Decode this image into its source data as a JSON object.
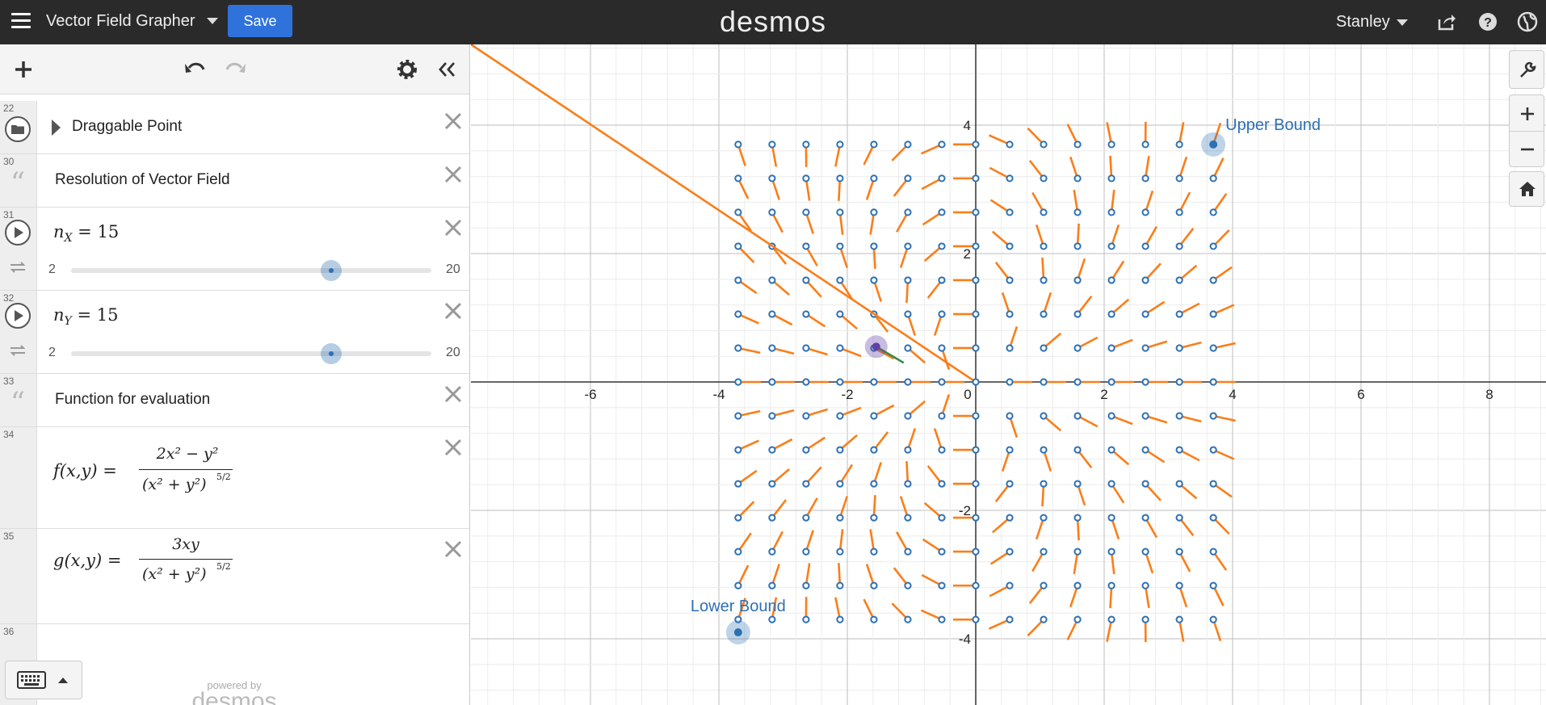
{
  "header": {
    "graph_title": "Vector Field Grapher",
    "save_label": "Save",
    "logo": "desmos",
    "user": "Stanley"
  },
  "expressions": [
    {
      "num": "22",
      "type": "folder",
      "text": "Draggable Point"
    },
    {
      "num": "30",
      "type": "note",
      "text": "Resolution of Vector Field"
    },
    {
      "num": "31",
      "type": "slider",
      "var": "n",
      "sub": "X",
      "value": "15",
      "min": "2",
      "max": "20",
      "fraction": 0.7222
    },
    {
      "num": "32",
      "type": "slider",
      "var": "n",
      "sub": "Y",
      "value": "15",
      "min": "2",
      "max": "20",
      "fraction": 0.7222
    },
    {
      "num": "33",
      "type": "note",
      "text": "Function for evaluation"
    },
    {
      "num": "34",
      "type": "formula",
      "fname": "f",
      "args": "(x,y)",
      "numerator": "2x² − y²",
      "denominator": "(x² + y²)",
      "exponent": "5/2"
    },
    {
      "num": "35",
      "type": "formula",
      "fname": "g",
      "args": "(x,y)",
      "numerator": "3xy",
      "denominator": "(x² + y²)",
      "exponent": "5/2"
    },
    {
      "num": "36",
      "type": "empty"
    }
  ],
  "footer": {
    "powered_by": "powered by",
    "powered_logo": "desmos"
  },
  "graph": {
    "x_ticks": [
      "-6",
      "-4",
      "-2",
      "0",
      "2",
      "4",
      "6",
      "8"
    ],
    "y_ticks": [
      "4",
      "2",
      "-2",
      "-4"
    ],
    "upper_label": "Upper Bound",
    "lower_label": "Lower Bound",
    "upper_point": [
      3.7,
      3.7
    ],
    "lower_point": [
      -3.7,
      -3.9
    ],
    "drag_point": [
      -1.55,
      0.55
    ],
    "grid": {
      "n": 15,
      "min": -3.7,
      "max": 3.7
    },
    "colors": {
      "point": "#2d70b3",
      "vector": "#fa7e19",
      "drag": "#6042a6",
      "drag_vector": "#388c46"
    }
  }
}
